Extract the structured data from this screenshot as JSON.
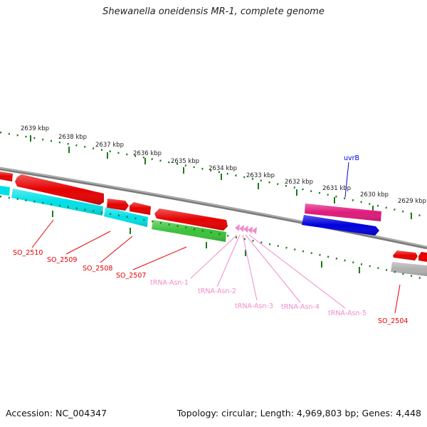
{
  "title": "Shewanella oneidensis MR-1, complete genome",
  "accession": "Accession: NC_004347",
  "summary": "Topology: circular; Length: 4,969,803 bp; Genes: 4,448",
  "kbp_labels": [
    "2639 kbp",
    "2638 kbp",
    "2637 kbp",
    "2636 kbp",
    "2635 kbp",
    "2634 kbp",
    "2633 kbp",
    "2632 kbp",
    "2631 kbp",
    "2630 kbp",
    "2629 kbp"
  ],
  "gene_labels": {
    "uvrB": "uvrB",
    "SO_2510": "SO_2510",
    "SO_2509": "SO_2509",
    "SO_2508": "SO_2508",
    "SO_2507": "SO_2507",
    "SO_2504": "SO_2504",
    "tRNA_Asn_1": "tRNA-Asn-1",
    "tRNA_Asn_2": "tRNA-Asn-2",
    "tRNA_Asn_3": "tRNA-Asn-3",
    "tRNA_Asn_4": "tRNA-Asn-4",
    "tRNA_Asn_5": "tRNA-Asn-5"
  },
  "colors": {
    "red": "#e60000",
    "cyan": "#00e0e8",
    "green": "#3ac23a",
    "magenta": "#e0197a",
    "blue": "#0000dd",
    "gray": "#b0b0b0",
    "pink": "#f08cc8",
    "tick_green": "#1a7a1a",
    "backbone": "#7a7a7a"
  }
}
